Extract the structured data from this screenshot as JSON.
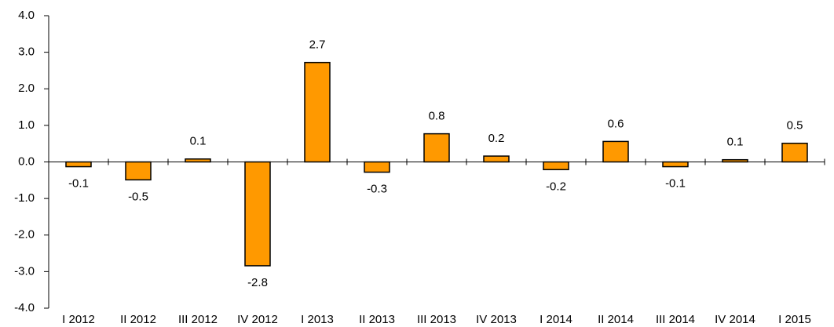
{
  "chart_data": {
    "type": "bar",
    "categories": [
      "I 2012",
      "II 2012",
      "III 2012",
      "IV 2012",
      "I 2013",
      "II 2013",
      "III 2013",
      "IV 2013",
      "I 2014",
      "II 2014",
      "III 2014",
      "IV 2014",
      "I 2015"
    ],
    "values": [
      -0.13,
      -0.49,
      0.08,
      -2.84,
      2.72,
      -0.28,
      0.77,
      0.16,
      -0.21,
      0.56,
      -0.13,
      0.06,
      0.51
    ],
    "value_labels": [
      "-0.1",
      "-0.5",
      "0.1",
      "-2.8",
      "2.7",
      "-0.3",
      "0.8",
      "0.2",
      "-0.2",
      "0.6",
      "-0.1",
      "0.1",
      "0.5"
    ],
    "color": "#ff9900",
    "ylim": [
      -4,
      4
    ],
    "yticks": [
      {
        "value": -4,
        "label": "-4.0"
      },
      {
        "value": -3,
        "label": "-3.0"
      },
      {
        "value": -2,
        "label": "-2.0"
      },
      {
        "value": -1,
        "label": "-1.0"
      },
      {
        "value": 0,
        "label": "0.0"
      },
      {
        "value": 1,
        "label": "1.0"
      },
      {
        "value": 2,
        "label": "2.0"
      },
      {
        "value": 3,
        "label": "3.0"
      },
      {
        "value": 4,
        "label": "4.0"
      }
    ],
    "grid": false
  }
}
